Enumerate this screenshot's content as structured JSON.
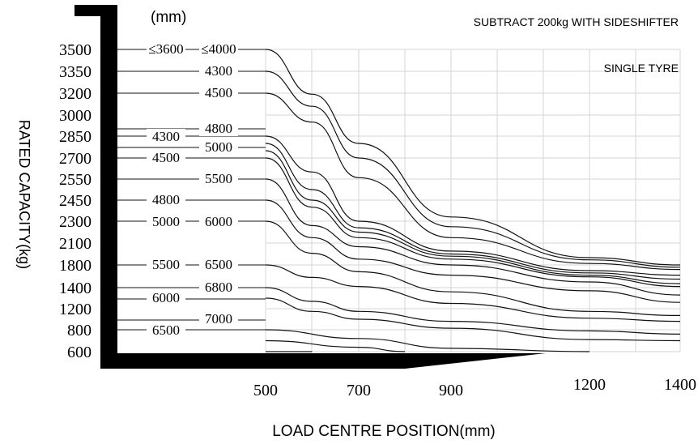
{
  "chart_data": {
    "type": "line",
    "unit_label": "(mm)",
    "note_sideshifter": "SUBTRACT 200kg WITH SIDESHIFTER",
    "note_tyre": "SINGLE TYRE",
    "ylabel": "RATED CAPACITY(kg)",
    "xlabel": "LOAD CENTRE POSITION(mm)",
    "x_ticks": [
      "500",
      "700",
      "900",
      "1200",
      "1400"
    ],
    "y_ticks": [
      "3500",
      "3350",
      "3200",
      "3000",
      "2850",
      "2700",
      "2550",
      "2450",
      "2300",
      "2100",
      "1800",
      "1400",
      "1200",
      "800",
      "600"
    ],
    "xlim": [
      500,
      1400
    ],
    "mast_heights": [
      {
        "text": "≤3600",
        "capacity": 3500
      },
      {
        "text": "≤4000",
        "capacity": 3500
      },
      {
        "text": "4300",
        "capacity": 3350
      },
      {
        "text": "4500",
        "capacity": 3200
      },
      {
        "text": "4300",
        "capacity": 2850
      },
      {
        "text": "4800",
        "capacity": 2850
      },
      {
        "text": "5000",
        "capacity": 2850
      },
      {
        "text": "4500",
        "capacity": 2700
      },
      {
        "text": "5500",
        "capacity": 2550
      },
      {
        "text": "4800",
        "capacity": 2450
      },
      {
        "text": "5000",
        "capacity": 2300
      },
      {
        "text": "6000",
        "capacity": 2300
      },
      {
        "text": "5500",
        "capacity": 1800
      },
      {
        "text": "6500",
        "capacity": 1800
      },
      {
        "text": "6800",
        "capacity": 1400
      },
      {
        "text": "6000",
        "capacity": 1400
      },
      {
        "text": "7000",
        "capacity": 800
      },
      {
        "text": "6500",
        "capacity": 800
      }
    ],
    "series": [
      {
        "capacity": 3500,
        "points": [
          [
            500,
            3500
          ],
          [
            600,
            3190
          ],
          [
            700,
            2800
          ],
          [
            900,
            2330
          ],
          [
            1200,
            1900
          ],
          [
            1400,
            1800
          ]
        ]
      },
      {
        "capacity": 3350,
        "points": [
          [
            500,
            3350
          ],
          [
            600,
            3080
          ],
          [
            700,
            2700
          ],
          [
            900,
            2250
          ],
          [
            1200,
            1870
          ],
          [
            1400,
            1760
          ]
        ]
      },
      {
        "capacity": 3200,
        "points": [
          [
            500,
            3200
          ],
          [
            600,
            2950
          ],
          [
            700,
            2560
          ],
          [
            900,
            2150
          ],
          [
            1200,
            1820
          ],
          [
            1400,
            1720
          ]
        ]
      },
      {
        "capacity": 2850,
        "points": [
          [
            500,
            2850
          ],
          [
            600,
            2600
          ],
          [
            700,
            2300
          ],
          [
            900,
            1990
          ],
          [
            1200,
            1700
          ],
          [
            1400,
            1620
          ]
        ]
      },
      {
        "capacity": 2800,
        "points": [
          [
            500,
            2800
          ],
          [
            600,
            2500
          ],
          [
            700,
            2240
          ],
          [
            900,
            1950
          ],
          [
            1200,
            1660
          ],
          [
            1400,
            1550
          ]
        ]
      },
      {
        "capacity": 2750,
        "points": [
          [
            500,
            2750
          ],
          [
            600,
            2450
          ],
          [
            700,
            2200
          ],
          [
            900,
            1920
          ],
          [
            1200,
            1620
          ],
          [
            1400,
            1470
          ]
        ]
      },
      {
        "capacity": 2700,
        "points": [
          [
            500,
            2700
          ],
          [
            600,
            2400
          ],
          [
            700,
            2150
          ],
          [
            900,
            1880
          ],
          [
            1200,
            1590
          ],
          [
            1400,
            1420
          ]
        ]
      },
      {
        "capacity": 2550,
        "points": [
          [
            500,
            2550
          ],
          [
            600,
            2260
          ],
          [
            700,
            2050
          ],
          [
            900,
            1800
          ],
          [
            1200,
            1500
          ],
          [
            1400,
            1330
          ]
        ]
      },
      {
        "capacity": 2450,
        "points": [
          [
            500,
            2450
          ],
          [
            600,
            2150
          ],
          [
            700,
            1880
          ],
          [
            900,
            1620
          ],
          [
            1200,
            1370
          ],
          [
            1400,
            1260
          ]
        ]
      },
      {
        "capacity": 2300,
        "points": [
          [
            500,
            2300
          ],
          [
            600,
            1960
          ],
          [
            700,
            1680
          ],
          [
            900,
            1360
          ],
          [
            1200,
            1150
          ],
          [
            1400,
            1070
          ]
        ]
      },
      {
        "capacity": 1800,
        "points": [
          [
            500,
            1800
          ],
          [
            600,
            1580
          ],
          [
            700,
            1420
          ],
          [
            900,
            1250
          ],
          [
            1200,
            1020
          ],
          [
            1400,
            960
          ]
        ]
      },
      {
        "capacity": 1400,
        "points": [
          [
            500,
            1400
          ],
          [
            600,
            1270
          ],
          [
            700,
            1150
          ],
          [
            900,
            960
          ],
          [
            1200,
            790
          ],
          [
            1400,
            760
          ]
        ]
      },
      {
        "capacity": 1300,
        "points": [
          [
            500,
            1300
          ],
          [
            600,
            1150
          ],
          [
            700,
            1000
          ],
          [
            900,
            830
          ],
          [
            1200,
            710
          ],
          [
            1400,
            700
          ]
        ]
      },
      {
        "capacity": 800,
        "points": [
          [
            500,
            800
          ],
          [
            700,
            720
          ],
          [
            900,
            630
          ],
          [
            1200,
            600
          ]
        ]
      },
      {
        "capacity": 700,
        "points": [
          [
            500,
            700
          ],
          [
            700,
            640
          ],
          [
            800,
            600
          ]
        ]
      },
      {
        "capacity": 600,
        "points": [
          [
            500,
            600
          ],
          [
            600,
            600
          ]
        ]
      }
    ]
  }
}
